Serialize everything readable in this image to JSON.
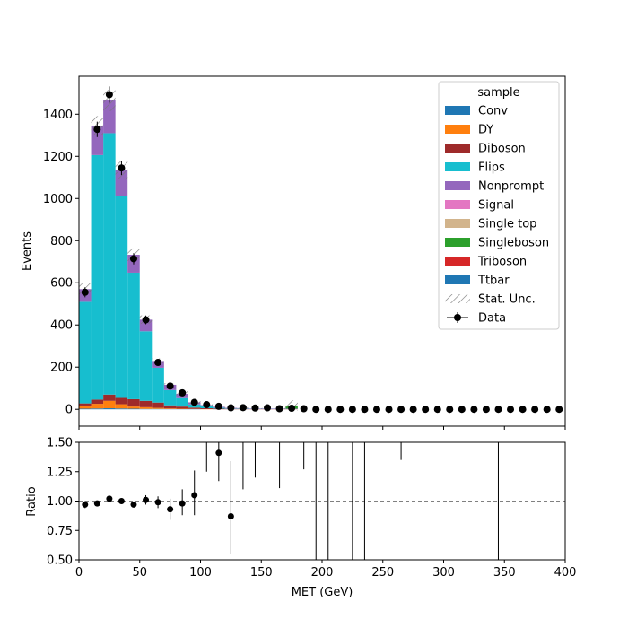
{
  "chart_data": {
    "type": "bar",
    "stacked": true,
    "xlabel": "MET (GeV)",
    "ylabel": "Events",
    "ratio_ylabel": "Ratio",
    "xlim": [
      0,
      400
    ],
    "ylim": [
      -80,
      1580
    ],
    "ratio_ylim": [
      0.5,
      1.5
    ],
    "ratio_reference": 1.0,
    "bin_width": 10,
    "bin_low_edges": [
      0,
      10,
      20,
      30,
      40,
      50,
      60,
      70,
      80,
      90,
      100,
      110,
      120,
      130,
      140,
      150,
      160,
      170,
      180,
      190,
      200,
      210,
      220,
      230,
      240,
      250,
      260,
      270,
      280,
      290,
      300,
      310,
      320,
      330,
      340,
      350,
      360,
      370,
      380,
      390
    ],
    "x_ticks": [
      0,
      50,
      100,
      150,
      200,
      250,
      300,
      350,
      400
    ],
    "y_ticks": [
      0,
      200,
      400,
      600,
      800,
      1000,
      1200,
      1400
    ],
    "ratio_ticks": [
      0.5,
      0.75,
      1.0,
      1.25,
      1.5
    ],
    "x_tick_labels": [
      "0",
      "50",
      "100",
      "150",
      "200",
      "250",
      "300",
      "350",
      "400"
    ],
    "y_tick_labels": [
      "0",
      "200",
      "400",
      "600",
      "800",
      "1000",
      "1200",
      "1400"
    ],
    "ratio_tick_labels": [
      "0.50",
      "0.75",
      "1.00",
      "1.25",
      "1.50"
    ],
    "legend_title": "sample",
    "legend_position": "top-right",
    "legend_items": [
      "Conv",
      "DY",
      "Diboson",
      "Flips",
      "Nonprompt",
      "Signal",
      "Single top",
      "Singleboson",
      "Triboson",
      "Ttbar",
      "Stat. Unc.",
      "Data"
    ],
    "series": [
      {
        "name": "Conv",
        "color": "#1f77b4",
        "values": [
          3,
          4,
          5,
          4,
          3,
          2,
          2,
          1,
          1,
          1,
          0,
          0,
          0,
          0,
          0,
          0,
          0,
          0,
          0,
          0,
          0,
          0,
          0,
          0,
          0,
          0,
          0,
          0,
          0,
          0,
          0,
          0,
          0,
          0,
          0,
          0,
          0,
          0,
          0,
          0
        ]
      },
      {
        "name": "DY",
        "color": "#ff7f0e",
        "values": [
          15,
          22,
          35,
          20,
          10,
          8,
          5,
          3,
          2,
          1,
          1,
          0,
          0,
          0,
          0,
          0,
          0,
          0,
          0,
          0,
          0,
          0,
          0,
          0,
          0,
          0,
          0,
          0,
          0,
          0,
          0,
          0,
          0,
          0,
          0,
          0,
          0,
          0,
          0,
          0
        ]
      },
      {
        "name": "Diboson",
        "color": "#9e2a2a",
        "values": [
          10,
          20,
          30,
          30,
          35,
          30,
          25,
          15,
          10,
          6,
          4,
          3,
          2,
          2,
          1,
          1,
          1,
          1,
          0,
          0,
          0,
          0,
          0,
          0,
          0,
          0,
          0,
          0,
          0,
          0,
          0,
          0,
          0,
          0,
          0,
          0,
          0,
          0,
          0,
          0
        ]
      },
      {
        "name": "Flips",
        "color": "#17becf",
        "values": [
          482,
          1160,
          1240,
          956,
          600,
          330,
          165,
          72,
          40,
          15,
          10,
          5,
          2,
          2,
          1,
          1,
          1,
          0,
          0,
          0,
          0,
          0,
          0,
          0,
          0,
          0,
          0,
          0,
          0,
          0,
          0,
          0,
          0,
          0,
          0,
          0,
          0,
          0,
          0,
          0
        ]
      },
      {
        "name": "Nonprompt",
        "color": "#9467bd",
        "values": [
          60,
          140,
          155,
          125,
          85,
          55,
          32,
          25,
          20,
          10,
          5,
          4,
          3,
          2,
          2,
          2,
          2,
          2,
          0,
          0,
          0,
          0,
          0,
          0,
          0,
          0,
          0,
          0,
          0,
          0,
          0,
          0,
          0,
          0,
          0,
          0,
          0,
          0,
          0,
          0
        ]
      },
      {
        "name": "Signal",
        "color": "#e377c2",
        "values": [
          0,
          0,
          0,
          0,
          0,
          0,
          0,
          0,
          0,
          0,
          0,
          0,
          0,
          0,
          0,
          0,
          0,
          0,
          0,
          0,
          0,
          0,
          0,
          0,
          0,
          0,
          0,
          0,
          0,
          0,
          0,
          0,
          0,
          0,
          0,
          0,
          0,
          0,
          0,
          0
        ]
      },
      {
        "name": "Single top",
        "color": "#d2b48c",
        "values": [
          0,
          0,
          0,
          0,
          0,
          0,
          0,
          0,
          0,
          0,
          0,
          0,
          0,
          0,
          0,
          0,
          0,
          0,
          0,
          0,
          0,
          0,
          0,
          0,
          0,
          0,
          0,
          0,
          0,
          0,
          0,
          0,
          0,
          0,
          0,
          0,
          0,
          0,
          0,
          0
        ]
      },
      {
        "name": "Singleboson",
        "color": "#2ca02c",
        "values": [
          0,
          0,
          0,
          0,
          0,
          0,
          0,
          0,
          0,
          0,
          0,
          0,
          0,
          0,
          0,
          0,
          0,
          15,
          0,
          0,
          0,
          0,
          0,
          0,
          0,
          0,
          0,
          0,
          0,
          0,
          0,
          0,
          0,
          0,
          0,
          0,
          0,
          0,
          0,
          0
        ]
      },
      {
        "name": "Triboson",
        "color": "#d62728",
        "values": [
          0,
          0,
          0,
          0,
          0,
          0,
          0,
          0,
          0,
          0,
          0,
          0,
          0,
          0,
          0,
          0,
          0,
          0,
          0,
          0,
          0,
          0,
          0,
          0,
          0,
          0,
          0,
          0,
          0,
          0,
          0,
          0,
          0,
          0,
          0,
          0,
          0,
          0,
          0,
          0
        ]
      },
      {
        "name": "Ttbar",
        "color": "#1f77b4",
        "values": [
          0,
          0,
          0,
          0,
          0,
          0,
          0,
          0,
          0,
          0,
          0,
          0,
          0,
          0,
          0,
          0,
          0,
          0,
          0,
          0,
          0,
          0,
          0,
          0,
          0,
          0,
          0,
          0,
          0,
          0,
          0,
          0,
          0,
          0,
          0,
          0,
          0,
          0,
          0,
          0
        ]
      }
    ],
    "stat_unc": [
      30,
      45,
      50,
      45,
      30,
      20,
      12,
      8,
      15,
      8,
      6,
      4,
      3,
      3,
      2,
      2,
      2,
      25,
      0,
      0,
      0,
      0,
      0,
      0,
      0,
      0,
      0,
      0,
      0,
      0,
      0,
      0,
      0,
      0,
      0,
      0,
      0,
      0,
      0,
      0
    ],
    "data": {
      "name": "Data",
      "color": "#000000",
      "values": [
        555,
        1328,
        1493,
        1145,
        714,
        424,
        222,
        110,
        78,
        33,
        22,
        14,
        7,
        8,
        6,
        7,
        3,
        5,
        3,
        0,
        0,
        0,
        0,
        0,
        0,
        0,
        0,
        0,
        0,
        0,
        0,
        0,
        0,
        0,
        0,
        0,
        0,
        0,
        0,
        0
      ]
    },
    "ratio": {
      "values": [
        0.97,
        0.98,
        1.02,
        1.0,
        0.97,
        1.01,
        0.99,
        0.93,
        0.98,
        1.05,
        null,
        1.41,
        0.87,
        null,
        null,
        null,
        null,
        null,
        null,
        null,
        null,
        null,
        null,
        null,
        null,
        null,
        null,
        null,
        null,
        null,
        null,
        null,
        null,
        null,
        null,
        null,
        null,
        null,
        null,
        null
      ],
      "err_low": [
        0.03,
        0.02,
        0.02,
        0.02,
        0.02,
        0.04,
        0.05,
        0.09,
        0.1,
        0.17,
        null,
        0.24,
        0.32,
        null,
        null,
        null,
        null,
        null,
        null,
        null,
        null,
        null,
        null,
        null,
        null,
        null,
        null,
        null,
        null,
        null,
        null,
        null,
        null,
        null,
        null,
        null,
        null,
        null,
        null,
        null
      ],
      "err_high": [
        0.03,
        0.02,
        0.02,
        0.02,
        0.02,
        0.04,
        0.05,
        0.09,
        0.12,
        0.21,
        null,
        0.3,
        0.47,
        null,
        null,
        null,
        null,
        null,
        null,
        null,
        null,
        null,
        null,
        null,
        null,
        null,
        null,
        null,
        null,
        null,
        null,
        null,
        null,
        null,
        null,
        null,
        null,
        null,
        null,
        null
      ],
      "offscale_bars": [
        {
          "x": 105,
          "low": 1.25
        },
        {
          "x": 135,
          "low": 1.1
        },
        {
          "x": 145,
          "low": 1.2
        },
        {
          "x": 165,
          "low": 1.11
        },
        {
          "x": 185,
          "low": 1.27
        },
        {
          "x": 195,
          "low": 0.5
        },
        {
          "x": 205,
          "low": 0.5
        },
        {
          "x": 225,
          "low": 0.5
        },
        {
          "x": 235,
          "low": 0.5
        },
        {
          "x": 265,
          "low": 1.35
        },
        {
          "x": 345,
          "low": 0.5
        }
      ]
    }
  }
}
